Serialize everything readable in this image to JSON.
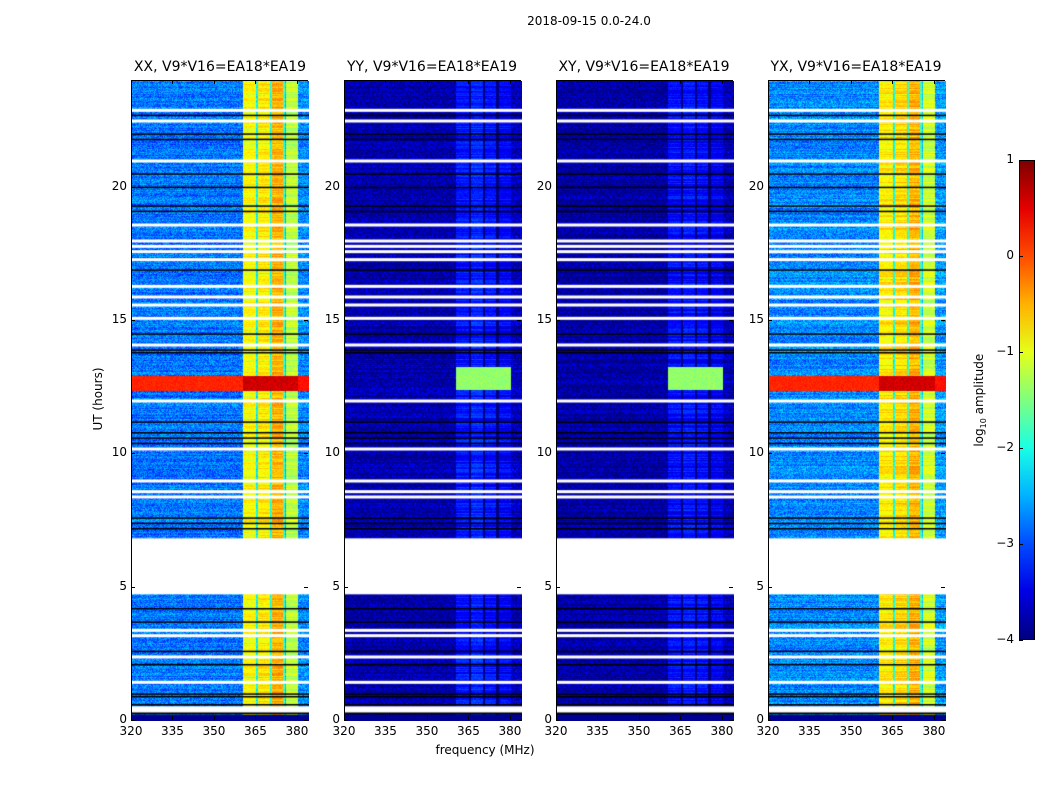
{
  "chart_data": {
    "type": "heatmap",
    "suptitle": "2018-09-15 0.0-24.0",
    "xlabel": "frequency (MHz)",
    "ylabel": "UT (hours)",
    "xlim": [
      320,
      384
    ],
    "ylim": [
      0,
      24
    ],
    "xticks": [
      320,
      335,
      350,
      365,
      380
    ],
    "yticks": [
      0,
      5,
      10,
      15,
      20
    ],
    "colormap": "jet",
    "colorbar": {
      "label_main": "log",
      "label_sub": "10",
      "label_rest": " amplitude",
      "range": [
        -4,
        1
      ],
      "ticks": [
        1,
        0,
        -1,
        -2,
        -3,
        -4
      ]
    },
    "no_data_interval_hours": [
      4.75,
      6.85
    ],
    "flagged_blank_rows_hours": [
      0.45,
      1.45,
      2.4,
      3.2,
      3.4,
      8.4,
      8.6,
      9.0,
      10.2,
      12.0,
      14.1,
      15.1,
      15.6,
      15.9,
      16.3,
      17.3,
      17.6,
      17.8,
      18.0,
      18.6,
      21.0,
      22.5,
      22.9
    ],
    "zero_rows_hours": [
      0.6,
      0.9,
      1.0,
      2.1,
      2.6,
      3.7,
      4.2,
      7.2,
      7.4,
      7.6,
      10.4,
      10.6,
      10.8,
      11.2,
      13.8,
      13.9,
      14.5,
      16.9,
      19.1,
      19.3,
      20.0,
      20.5,
      21.8,
      22.0,
      22.7
    ],
    "rfi_band_mhz": [
      360,
      380
    ],
    "rfi_subband_edges_mhz": [
      365,
      370,
      375
    ],
    "panels": [
      {
        "title": "XX, V9*V16=EA18*EA19",
        "background_log_amp": -2.8,
        "band_log_amp": [
          -0.9,
          -0.8,
          -0.5,
          -1.2
        ],
        "event_hours": [
          12.4,
          12.95
        ],
        "event_log_amp": 0.2
      },
      {
        "title": "YY, V9*V16=EA18*EA19",
        "background_log_amp": -3.8,
        "band_log_amp": [
          -3.3,
          -3.2,
          -3.3,
          -3.4
        ],
        "event_hours": [
          12.45,
          13.3
        ],
        "event_log_amp": -1.8
      },
      {
        "title": "XY, V9*V16=EA18*EA19",
        "background_log_amp": -3.85,
        "band_log_amp": [
          -3.35,
          -3.3,
          -3.35,
          -3.45
        ],
        "event_hours": [
          12.45,
          13.3
        ],
        "event_log_amp": -1.8
      },
      {
        "title": "YX, V9*V16=EA18*EA19",
        "background_log_amp": -2.7,
        "band_log_amp": [
          -0.8,
          -0.7,
          -0.5,
          -1.1
        ],
        "event_hours": [
          12.4,
          12.95
        ],
        "event_log_amp": 0.2
      }
    ]
  }
}
